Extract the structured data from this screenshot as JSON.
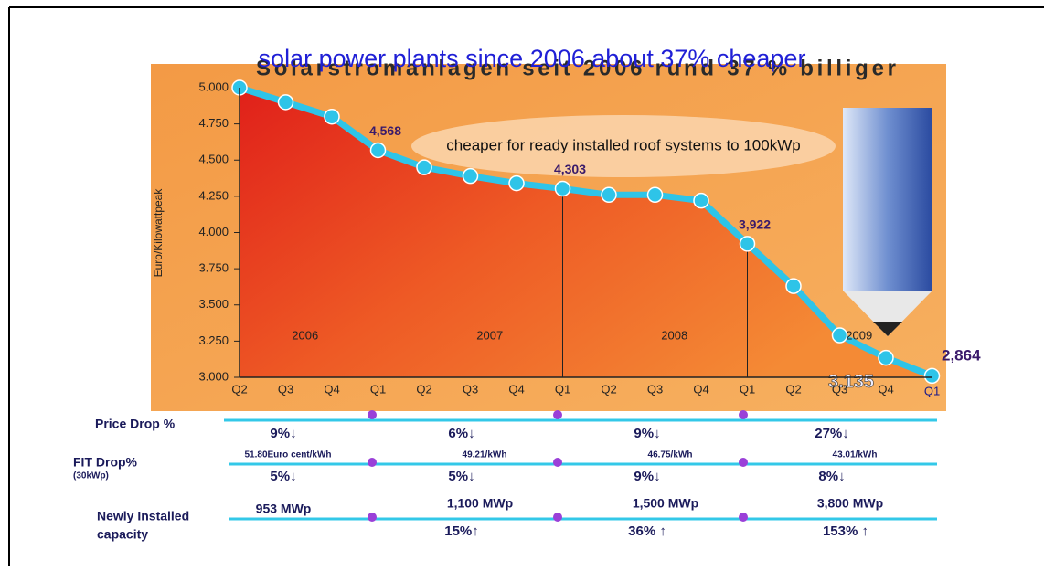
{
  "chart_data": {
    "type": "line",
    "title": "solar power plants since 2006 about 37% cheaper",
    "subtitle": "Solarstromanlagen seit 2006 rund 37 % billiger",
    "y_label": "Euro/Kilowattpeak",
    "categories": [
      "Q2",
      "Q3",
      "Q4",
      "Q1",
      "Q2",
      "Q3",
      "Q4",
      "Q1",
      "Q2",
      "Q3",
      "Q4",
      "Q1",
      "Q2",
      "Q3",
      "Q4",
      "Q1"
    ],
    "years": [
      "2006",
      "2007",
      "2008",
      "2009"
    ],
    "series": [
      {
        "color": "#2ec4e8",
        "values": [
          5000,
          4900,
          4800,
          4568,
          4450,
          4390,
          4340,
          4303,
          4260,
          4260,
          4220,
          3922,
          3630,
          3290,
          3135,
          3010
        ],
        "value_labels": [
          null,
          null,
          null,
          "4,568",
          null,
          null,
          null,
          "4,303",
          null,
          null,
          null,
          "3,922",
          null,
          null,
          "3.135",
          null
        ]
      }
    ],
    "annotations": [
      "2,864",
      "cheaper for ready installed roof systems to 100kWp"
    ],
    "ylim": [
      3000,
      5000
    ],
    "yticks": [
      {
        "value": 3000,
        "label": "3.000"
      },
      {
        "value": 3250,
        "label": "3.250"
      },
      {
        "value": 3500,
        "label": "3.500"
      },
      {
        "value": 3750,
        "label": "3.750"
      },
      {
        "value": 4000,
        "label": "4.000"
      },
      {
        "value": 4250,
        "label": "4.250"
      },
      {
        "value": 4500,
        "label": "4.500"
      },
      {
        "value": 4750,
        "label": "4.750"
      },
      {
        "value": 5000,
        "label": "5.000"
      }
    ]
  },
  "table": {
    "price_drop": {
      "label": "Price Drop %",
      "values": [
        "9%↓",
        "6%↓",
        "9%↓",
        "27%↓"
      ]
    },
    "fit_drop": {
      "label": "FIT Drop%",
      "sublabel": "(30kWp)",
      "prices": [
        "51.80Euro cent/kWh",
        "49.21/kWh",
        "46.75/kWh",
        "43.01/kWh"
      ],
      "values": [
        "5%↓",
        "5%↓",
        "9%↓",
        "8%↓"
      ]
    },
    "capacity": {
      "label": "Newly Installed",
      "label2": "capacity",
      "values": [
        "953 MWp",
        "1,100 MWp",
        "1,500 MWp",
        "3,800 MWp"
      ],
      "growth": [
        "15%↑",
        "36% ↑",
        "153% ↑"
      ]
    }
  }
}
